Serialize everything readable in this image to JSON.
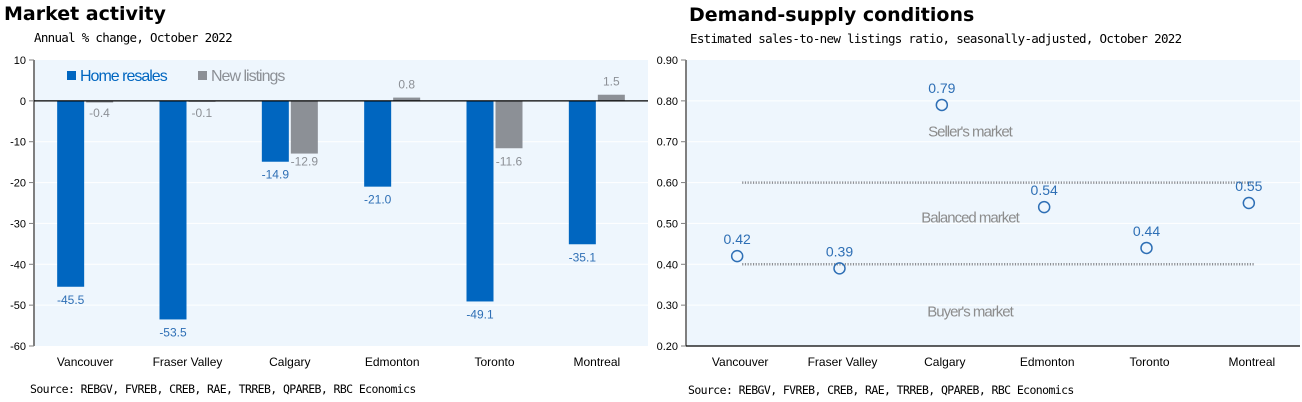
{
  "charts": {
    "left": {
      "title": "Market activity",
      "subtitle": "Annual % change, October 2022",
      "source": "Source: REBGV, FVREB, CREB, RAE, TRREB, QPAREB, RBC Economics"
    },
    "right": {
      "title": "Demand-supply conditions",
      "subtitle": "Estimated sales-to-new listings ratio, seasonally-adjusted, October 2022",
      "source": "Source: REBGV, FVREB, CREB, RAE, TRREB, QPAREB, RBC Economics"
    }
  },
  "colors": {
    "home_resales": "#0066c0",
    "new_listings": "#8c9096",
    "plot_bg": "#eef6fd",
    "label_blue": "#2e6fb5",
    "label_gray": "#8c9096",
    "zone_text": "#8c8c8c",
    "threshold_line": "#8c9096"
  },
  "chart_data": [
    {
      "type": "bar",
      "title": "Market activity",
      "subtitle": "Annual % change, October 2022",
      "xlabel": "",
      "ylabel": "",
      "categories": [
        "Vancouver",
        "Fraser Valley",
        "Calgary",
        "Edmonton",
        "Toronto",
        "Montreal"
      ],
      "series": [
        {
          "name": "Home resales",
          "values": [
            -45.5,
            -53.5,
            -14.9,
            -21.0,
            -49.1,
            -35.1
          ],
          "labels": [
            "-45.5",
            "-53.5",
            "-14.9",
            "-21.0",
            "-49.1",
            "-35.1"
          ]
        },
        {
          "name": "New listings",
          "values": [
            -0.4,
            -0.1,
            -12.9,
            0.8,
            -11.6,
            1.5
          ],
          "labels": [
            "-0.4",
            "-0.1",
            "-12.9",
            "0.8",
            "-11.6",
            "1.5"
          ]
        }
      ],
      "ylim": [
        -60,
        10
      ],
      "yticks": [
        10,
        0,
        -10,
        -20,
        -30,
        -40,
        -50,
        -60
      ],
      "ytick_labels": [
        "10",
        "0",
        "-10",
        "-20",
        "-30",
        "-40",
        "-50",
        "-60"
      ],
      "grid": true,
      "legend": "top-left",
      "source": "Source: REBGV, FVREB, CREB, RAE, TRREB, QPAREB, RBC Economics"
    },
    {
      "type": "scatter",
      "title": "Demand-supply conditions",
      "subtitle": "Estimated sales-to-new listings ratio, seasonally-adjusted, October 2022",
      "xlabel": "",
      "ylabel": "",
      "categories": [
        "Vancouver",
        "Fraser Valley",
        "Calgary",
        "Edmonton",
        "Toronto",
        "Montreal"
      ],
      "values": [
        0.42,
        0.39,
        0.79,
        0.54,
        0.44,
        0.55
      ],
      "labels": [
        "0.42",
        "0.39",
        "0.79",
        "0.54",
        "0.44",
        "0.55"
      ],
      "ylim": [
        0.2,
        0.9
      ],
      "yticks": [
        0.9,
        0.8,
        0.7,
        0.6,
        0.5,
        0.4,
        0.3,
        0.2
      ],
      "ytick_labels": [
        "0.90",
        "0.80",
        "0.70",
        "0.60",
        "0.50",
        "0.40",
        "0.30",
        "0.20"
      ],
      "thresholds": [
        {
          "name": "seller-threshold",
          "value": 0.6
        },
        {
          "name": "buyer-threshold",
          "value": 0.4
        }
      ],
      "zones": [
        {
          "label": "Seller's market",
          "value": 0.725
        },
        {
          "label": "Balanced market",
          "value": 0.515
        },
        {
          "label": "Buyer's market",
          "value": 0.285
        }
      ],
      "grid": true,
      "legend": "none",
      "source": "Source: REBGV, FVREB, CREB, RAE, TRREB, QPAREB, RBC Economics"
    }
  ]
}
